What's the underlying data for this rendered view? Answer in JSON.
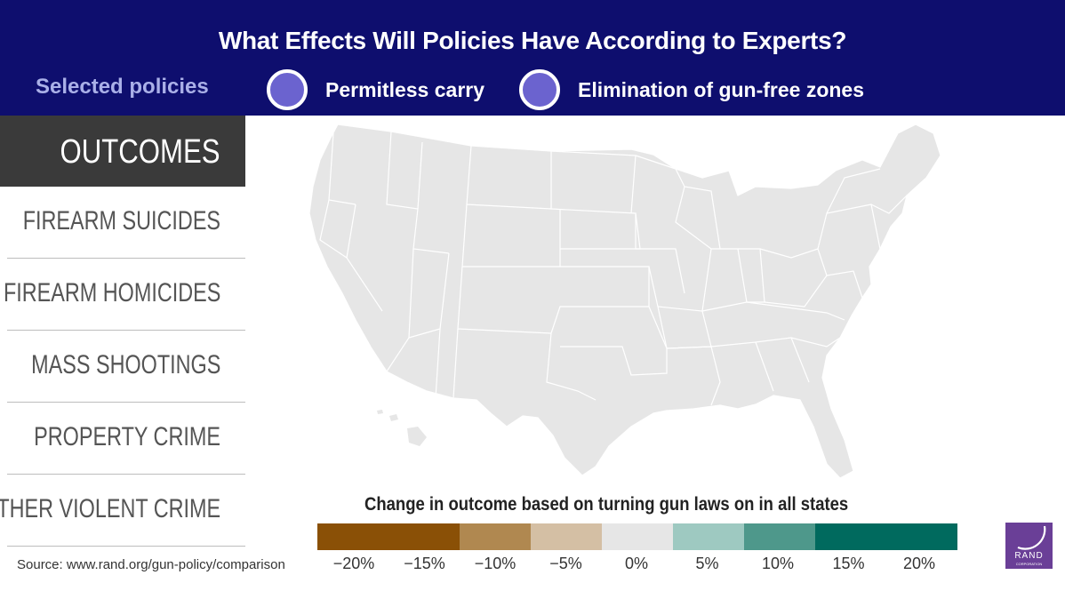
{
  "header": {
    "title": "What Effects Will Policies Have According to Experts?",
    "selected_label": "Selected policies",
    "policies": [
      {
        "label": "Permitless carry",
        "color": "#6b63cf"
      },
      {
        "label": "Elimination of gun-free zones",
        "color": "#6b63cf"
      }
    ]
  },
  "sidebar": {
    "heading": "OUTCOMES",
    "items": [
      {
        "label": "FIREARM SUICIDES"
      },
      {
        "label": "FIREARM HOMICIDES"
      },
      {
        "label": "MASS SHOOTINGS"
      },
      {
        "label": "PROPERTY CRIME"
      },
      {
        "label": "OTHER VIOLENT CRIME"
      }
    ]
  },
  "map": {
    "fill": "#e6e6e6",
    "border": "#ffffff"
  },
  "legend": {
    "title": "Change in outcome based on turning gun laws on in all states",
    "swatches": [
      {
        "color": "#8a5006",
        "span": 2
      },
      {
        "color": "#b08850",
        "span": 1
      },
      {
        "color": "#d4bfa4",
        "span": 1
      },
      {
        "color": "#e6e6e6",
        "span": 1
      },
      {
        "color": "#9ec9c1",
        "span": 1
      },
      {
        "color": "#4e988b",
        "span": 1
      },
      {
        "color": "#006a5e",
        "span": 2
      }
    ],
    "ticks": [
      "−20%",
      "−15%",
      "−10%",
      "−5%",
      "0%",
      "5%",
      "10%",
      "15%",
      "20%"
    ]
  },
  "source": "Source: www.rand.org/gun-policy/comparison",
  "logo": {
    "text": "RAND",
    "sub": "CORPORATION",
    "color": "#6a3f97"
  }
}
